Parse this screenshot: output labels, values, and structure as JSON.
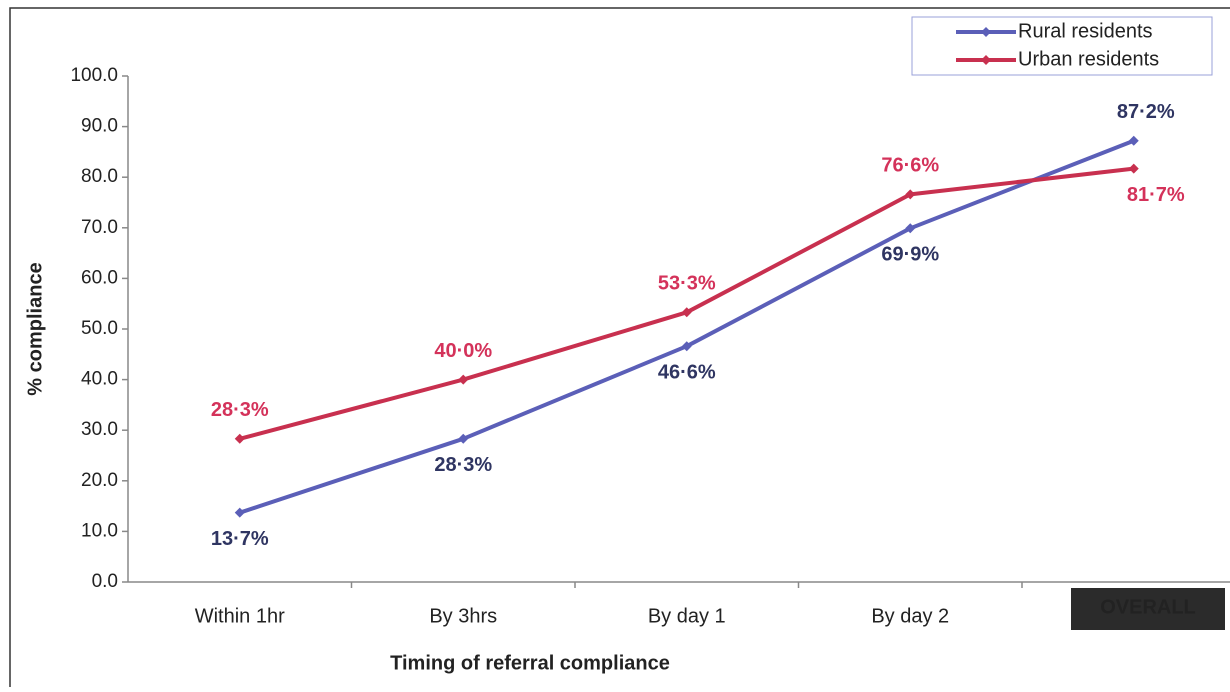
{
  "chart_data": {
    "type": "line",
    "x_label": "Timing of referral compliance",
    "y_label": "% compliance",
    "categories": [
      "Within 1hr",
      "By 3hrs",
      "By day 1",
      "By day 2",
      "OVERALL"
    ],
    "series": [
      {
        "name": "Rural residents",
        "color": "#5b5fb8",
        "label_color": "#2f3562",
        "values": [
          13.7,
          28.3,
          46.6,
          69.9,
          87.2
        ],
        "value_labels": [
          "13·7%",
          "28·3%",
          "46·6%",
          "69·9%",
          "87·2%"
        ]
      },
      {
        "name": "Urban residents",
        "color": "#c8304f",
        "label_color": "#d4325a",
        "values": [
          28.3,
          40.0,
          53.3,
          76.6,
          81.7
        ],
        "value_labels": [
          "28·3%",
          "40·0%",
          "53·3%",
          "76·6%",
          "81·7%"
        ]
      }
    ],
    "ylim": [
      0,
      100
    ],
    "yticks": [
      {
        "value": 0,
        "label": "0.0"
      },
      {
        "value": 10,
        "label": "10.0"
      },
      {
        "value": 20,
        "label": "20.0"
      },
      {
        "value": 30,
        "label": "30.0"
      },
      {
        "value": 40,
        "label": "40.0"
      },
      {
        "value": 50,
        "label": "50.0"
      },
      {
        "value": 60,
        "label": "60.0"
      },
      {
        "value": 70,
        "label": "70.0"
      },
      {
        "value": 80,
        "label": "80.0"
      },
      {
        "value": 90,
        "label": "90.0"
      },
      {
        "value": 100,
        "label": "100.0"
      }
    ],
    "grid": false,
    "legend": "upper right"
  }
}
